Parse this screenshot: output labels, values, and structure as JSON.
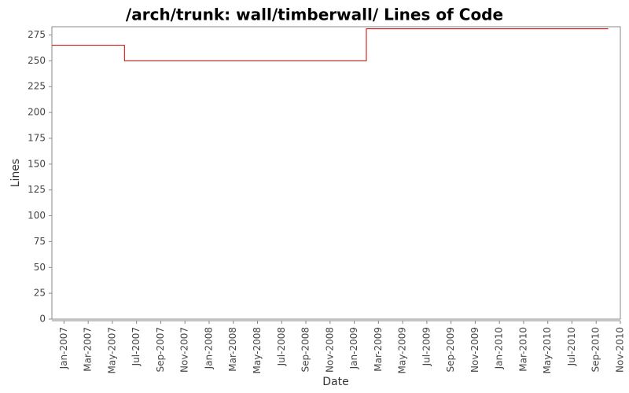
{
  "chart_data": {
    "type": "step-line",
    "title": "/arch/trunk: wall/timberwall/ Lines of Code",
    "x_label": "Date",
    "y_label": "Lines",
    "series": [
      {
        "name": "Lines",
        "color": "#cc0000",
        "x": [
          "2006-12",
          "2007-06",
          "2009-02",
          "2010-10"
        ],
        "values": [
          265,
          250,
          281,
          281
        ]
      }
    ],
    "xlim": [
      "2006-12",
      "2010-11"
    ],
    "xticks": [
      {
        "value": "2007-01",
        "label": "Jan-2007"
      },
      {
        "value": "2007-03",
        "label": "Mar-2007"
      },
      {
        "value": "2007-05",
        "label": "May-2007"
      },
      {
        "value": "2007-07",
        "label": "Jul-2007"
      },
      {
        "value": "2007-09",
        "label": "Sep-2007"
      },
      {
        "value": "2007-11",
        "label": "Nov-2007"
      },
      {
        "value": "2008-01",
        "label": "Jan-2008"
      },
      {
        "value": "2008-03",
        "label": "Mar-2008"
      },
      {
        "value": "2008-05",
        "label": "May-2008"
      },
      {
        "value": "2008-07",
        "label": "Jul-2008"
      },
      {
        "value": "2008-09",
        "label": "Sep-2008"
      },
      {
        "value": "2008-11",
        "label": "Nov-2008"
      },
      {
        "value": "2009-01",
        "label": "Jan-2009"
      },
      {
        "value": "2009-03",
        "label": "Mar-2009"
      },
      {
        "value": "2009-05",
        "label": "May-2009"
      },
      {
        "value": "2009-07",
        "label": "Jul-2009"
      },
      {
        "value": "2009-09",
        "label": "Sep-2009"
      },
      {
        "value": "2009-11",
        "label": "Nov-2009"
      },
      {
        "value": "2010-01",
        "label": "Jan-2010"
      },
      {
        "value": "2010-03",
        "label": "Mar-2010"
      },
      {
        "value": "2010-05",
        "label": "May-2010"
      },
      {
        "value": "2010-07",
        "label": "Jul-2010"
      },
      {
        "value": "2010-09",
        "label": "Sep-2010"
      },
      {
        "value": "2010-11",
        "label": "Nov-2010"
      }
    ],
    "ylim": [
      0,
      283
    ],
    "yticks": [
      0,
      25,
      50,
      75,
      100,
      125,
      150,
      175,
      200,
      225,
      250,
      275
    ],
    "grid": false
  }
}
